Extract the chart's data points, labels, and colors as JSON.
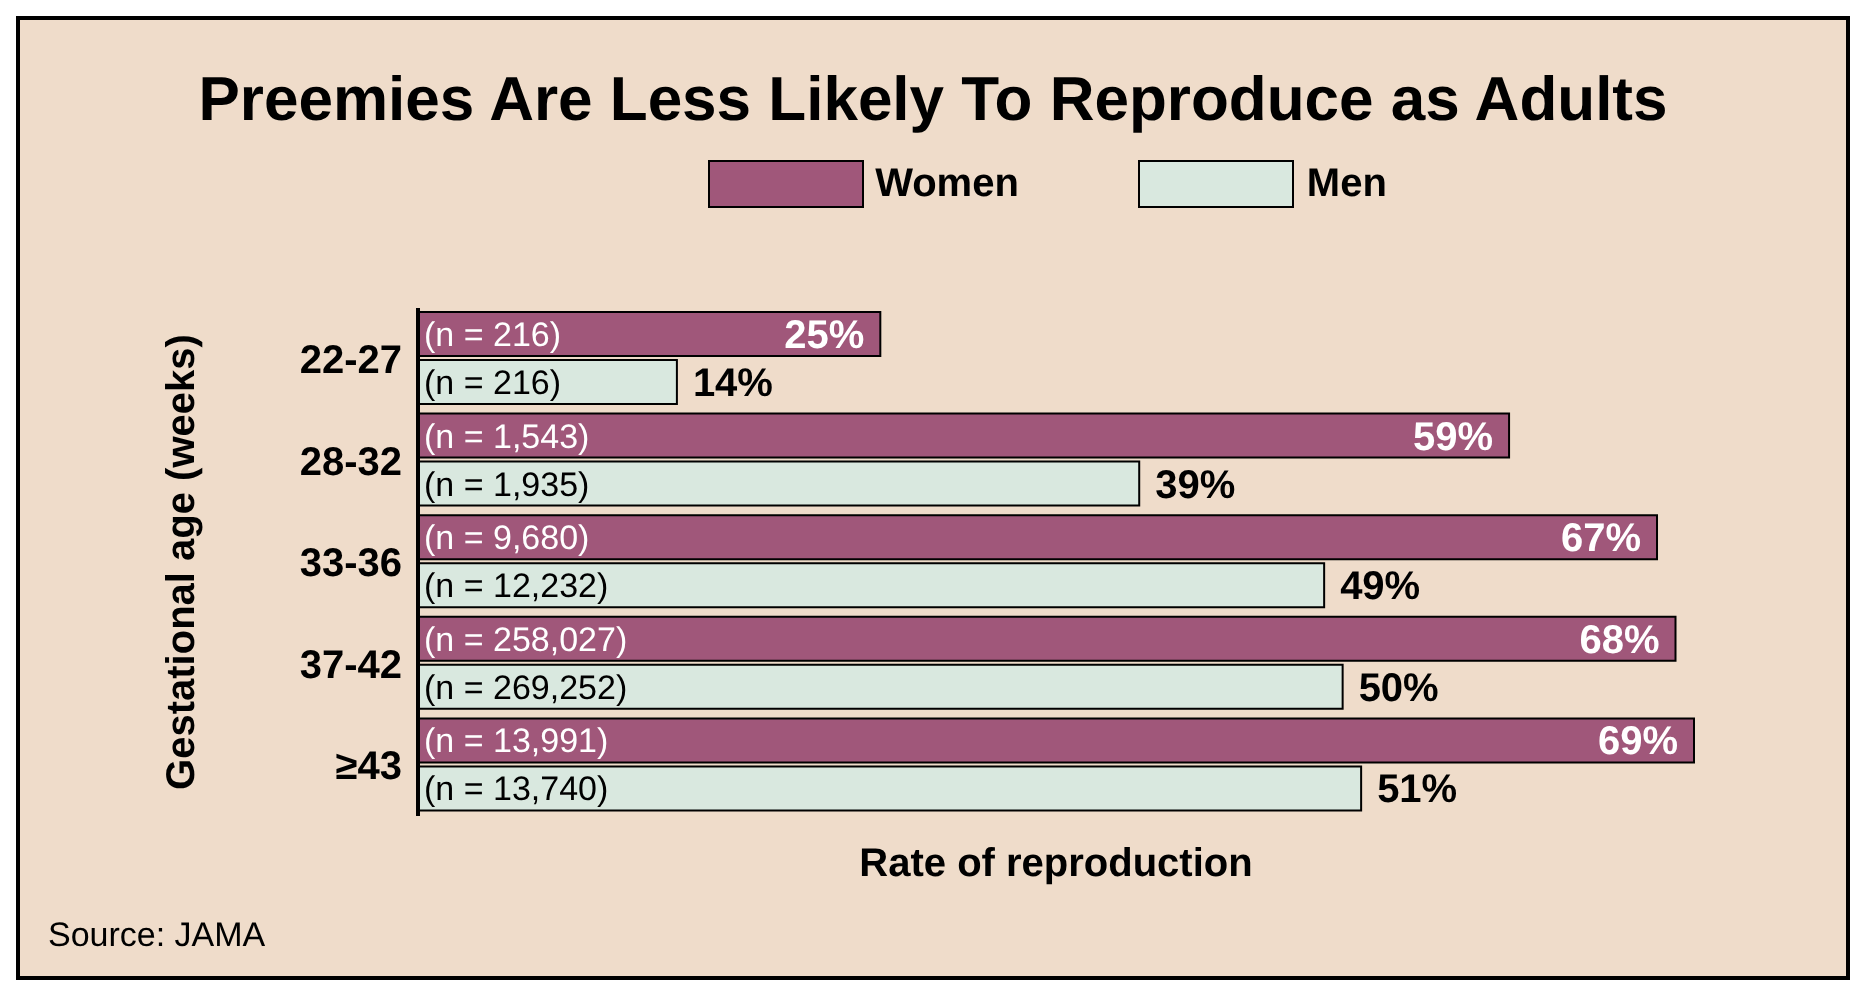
{
  "chart_data": {
    "type": "bar",
    "orientation": "horizontal",
    "title": "Preemies Are Less Likely To Reproduce as Adults",
    "ylabel": "Gestational age (weeks)",
    "xlabel": "Rate of reproduction",
    "categories": [
      "22-27",
      "28-32",
      "33-36",
      "37-42",
      "≥43"
    ],
    "series": [
      {
        "name": "Women",
        "color": "#a0577a",
        "values": [
          25,
          59,
          67,
          68,
          69
        ],
        "value_labels": [
          "25%",
          "59%",
          "67%",
          "68%",
          "69%"
        ]
      },
      {
        "name": "Men",
        "color": "#d9e8df",
        "values": [
          14,
          39,
          49,
          50,
          51
        ],
        "value_labels": [
          "14%",
          "39%",
          "49%",
          "50%",
          "51%"
        ]
      }
    ],
    "legend": "top",
    "annotations": [
      "(n = 216)",
      "(n = 216)",
      "(n = 1,543)",
      "(n = 1,935)",
      "(n = 9,680)",
      "(n = 12,232)",
      "(n = 258,027)",
      "(n = 269,252)",
      "(n = 13,991)",
      "(n = 13,740)",
      "Source: JAMA"
    ]
  }
}
